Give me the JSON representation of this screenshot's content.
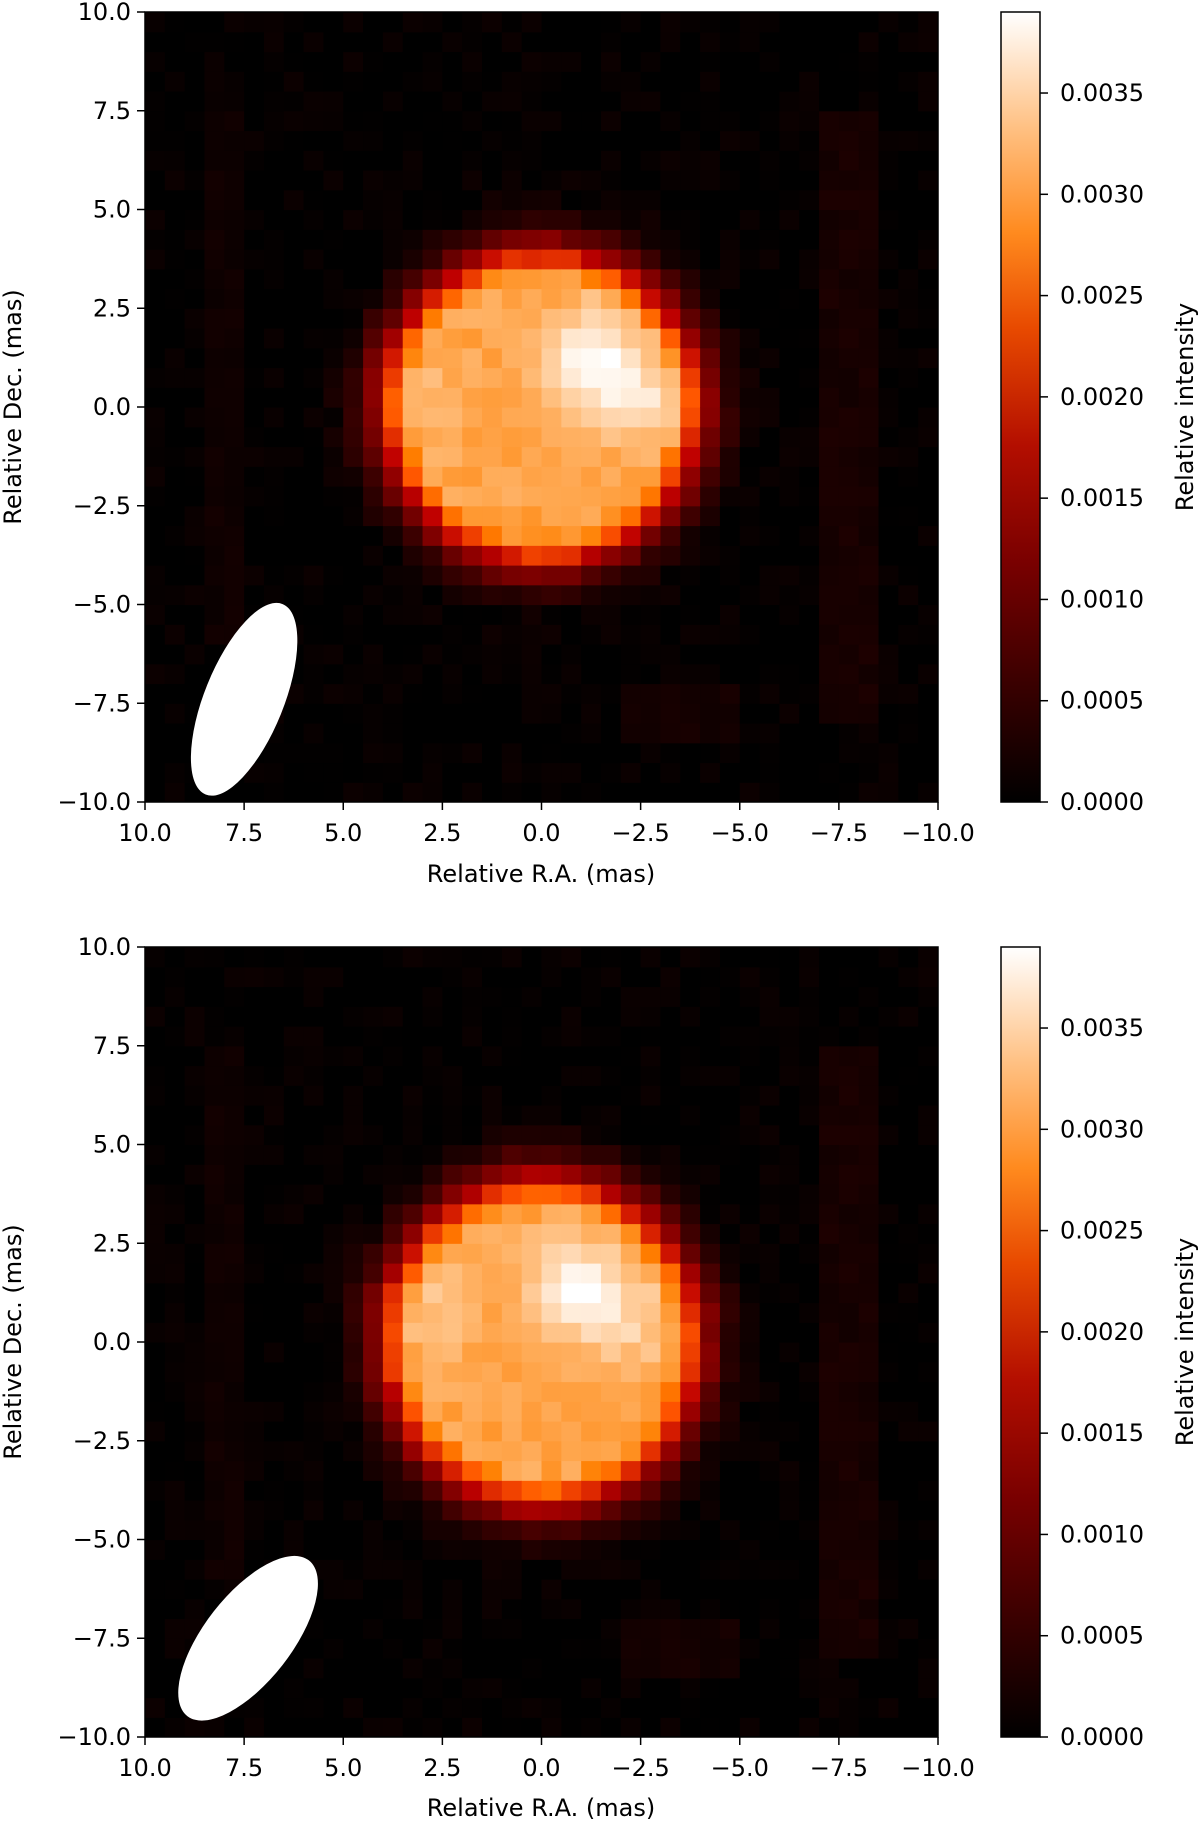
{
  "chart_data": [
    {
      "type": "heatmap",
      "panel": "top",
      "xlabel": "Relative R.A. (mas)",
      "ylabel": "Relative Dec. (mas)",
      "colorbar_label": "Relative intensity",
      "colormap": "gist_heat",
      "xlim": [
        10.0,
        -10.0
      ],
      "ylim": [
        -10.0,
        10.0
      ],
      "x_ticks": [
        "10.0",
        "7.5",
        "5.0",
        "2.5",
        "0.0",
        "−2.5",
        "−5.0",
        "−7.5",
        "−10.0"
      ],
      "y_ticks": [
        "−10.0",
        "−7.5",
        "−5.0",
        "−2.5",
        "0.0",
        "2.5",
        "5.0",
        "7.5",
        "10.0"
      ],
      "colorbar_range": [
        0.0,
        0.0039
      ],
      "colorbar_ticks": [
        "0.0000",
        "0.0005",
        "0.0010",
        "0.0015",
        "0.0020",
        "0.0025",
        "0.0030",
        "0.0035"
      ],
      "source": {
        "center_x": 0.0,
        "center_y": 0.0,
        "radius_x": 4.3,
        "radius_y": 4.3,
        "peak": 0.0039
      },
      "hotspots": [
        {
          "x": -1.2,
          "y": 1.2,
          "value": 0.0039
        },
        {
          "x": 3.6,
          "y": 0.6,
          "value": 0.0035
        },
        {
          "x": -2.6,
          "y": 0.2,
          "value": 0.0036
        }
      ],
      "pixel_size_mas": 0.5,
      "beam": {
        "center_x": 7.5,
        "center_y": -7.4,
        "major_mas": 5.2,
        "minor_mas": 2.0,
        "angle_deg": 22,
        "color": "#ffffff"
      }
    },
    {
      "type": "heatmap",
      "panel": "bottom",
      "xlabel": "Relative R.A. (mas)",
      "ylabel": "Relative Dec. (mas)",
      "colorbar_label": "Relative intensity",
      "colormap": "gist_heat",
      "xlim": [
        10.0,
        -10.0
      ],
      "ylim": [
        -10.0,
        10.0
      ],
      "x_ticks": [
        "10.0",
        "7.5",
        "5.0",
        "2.5",
        "0.0",
        "−2.5",
        "−5.0",
        "−7.5",
        "−10.0"
      ],
      "y_ticks": [
        "−10.0",
        "−7.5",
        "−5.0",
        "−2.5",
        "0.0",
        "2.5",
        "5.0",
        "7.5",
        "10.0"
      ],
      "colorbar_range": [
        0.0,
        0.0039
      ],
      "colorbar_ticks": [
        "0.0000",
        "0.0005",
        "0.0010",
        "0.0015",
        "0.0020",
        "0.0025",
        "0.0030",
        "0.0035"
      ],
      "source": {
        "center_x": 0.0,
        "center_y": 0.0,
        "radius_x": 4.3,
        "radius_y": 4.5,
        "peak": 0.0039
      },
      "hotspots": [
        {
          "x": -0.9,
          "y": 1.4,
          "value": 0.0039
        },
        {
          "x": 3.2,
          "y": 0.8,
          "value": 0.0035
        },
        {
          "x": -2.4,
          "y": 0.4,
          "value": 0.0035
        }
      ],
      "pixel_size_mas": 0.5,
      "beam": {
        "center_x": 7.4,
        "center_y": -7.5,
        "major_mas": 5.0,
        "minor_mas": 2.2,
        "angle_deg": 38,
        "color": "#ffffff"
      }
    }
  ]
}
